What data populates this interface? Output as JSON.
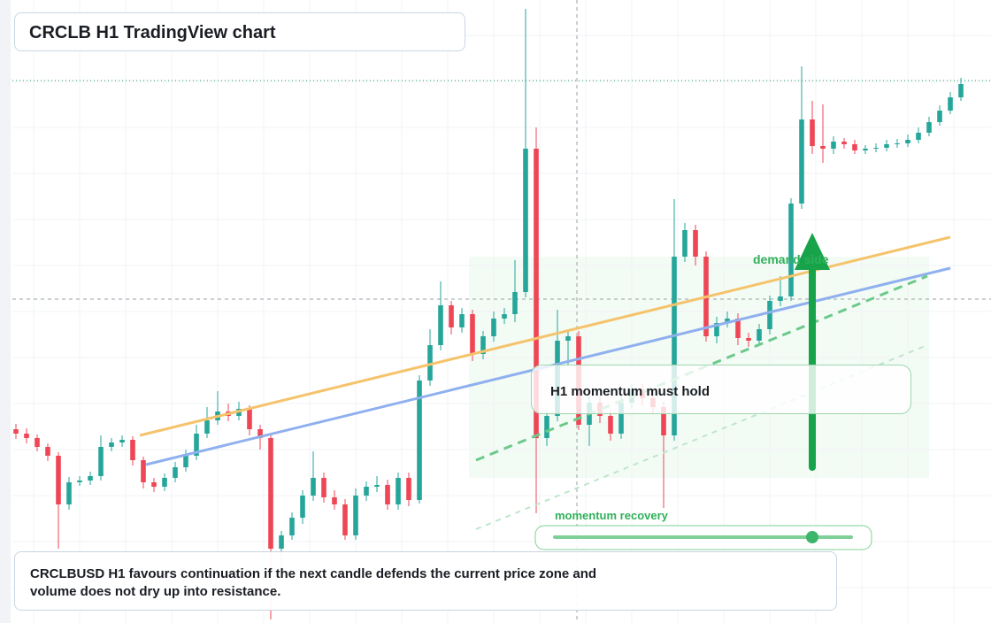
{
  "chart_data": {
    "type": "candlestick",
    "title": "CRCLB H1 TradingView chart",
    "annotations": {
      "zone": "demand side",
      "box": "H1 momentum must hold",
      "slider": "momentum recovery",
      "note": "CRCLBUSD H1 favours continuation if the next candle defends the current price zone and volume does not dry up into resistance."
    },
    "up_color": "#26a69a",
    "down_color": "#ef4655",
    "ylim": [
      0,
      704
    ],
    "series": [
      {
        "name": "open",
        "values": [
          219,
          214,
          209,
          199,
          189,
          134,
          159,
          161,
          166,
          199,
          204,
          207,
          184,
          159,
          154,
          164,
          176,
          189,
          214,
          229,
          239,
          234,
          242,
          219,
          209,
          84,
          99,
          119,
          144,
          164,
          142,
          134,
          99,
          144,
          154,
          156,
          134,
          164,
          139,
          274,
          314,
          359,
          334,
          349,
          304,
          324,
          344,
          349,
          374,
          536,
          209,
          234,
          319,
          324,
          224,
          249,
          234,
          214,
          249,
          264,
          254,
          244,
          212,
          414,
          444,
          414,
          324,
          339,
          344,
          322,
          319,
          332,
          364,
          369,
          474,
          569,
          539,
          536,
          544,
          541,
          534,
          536,
          537,
          541,
          542,
          546,
          554,
          566,
          579,
          594
        ]
      },
      {
        "name": "high",
        "values": [
          225,
          220,
          213,
          203,
          193,
          165,
          166,
          171,
          212,
          209,
          212,
          211,
          188,
          164,
          169,
          182,
          196,
          224,
          244,
          262,
          248,
          250,
          246,
          224,
          213,
          104,
          125,
          150,
          194,
          170,
          150,
          140,
          152,
          160,
          166,
          162,
          170,
          170,
          280,
          332,
          386,
          364,
          356,
          354,
          330,
          352,
          356,
          410,
          694,
          560,
          240,
          354,
          330,
          330,
          256,
          256,
          240,
          256,
          270,
          270,
          260,
          250,
          479,
          452,
          450,
          420,
          346,
          352,
          350,
          328,
          338,
          370,
          392,
          480,
          629,
          590,
          586,
          550,
          548,
          546,
          540,
          542,
          546,
          547,
          552,
          560,
          572,
          585,
          600,
          616
        ]
      },
      {
        "name": "low",
        "values": [
          208,
          203,
          194,
          183,
          84,
          128,
          155,
          156,
          161,
          194,
          199,
          178,
          152,
          148,
          149,
          159,
          171,
          184,
          209,
          224,
          228,
          229,
          212,
          196,
          4,
          60,
          94,
          112,
          138,
          136,
          128,
          94,
          94,
          138,
          148,
          128,
          128,
          132,
          135,
          268,
          308,
          326,
          328,
          296,
          298,
          318,
          338,
          340,
          368,
          124,
          200,
          228,
          292,
          218,
          200,
          226,
          206,
          208,
          242,
          246,
          236,
          130,
          206,
          408,
          404,
          318,
          316,
          334,
          314,
          312,
          313,
          326,
          358,
          364,
          468,
          530,
          520,
          530,
          536,
          530,
          530,
          532,
          533,
          537,
          538,
          542,
          550,
          562,
          575,
          590
        ]
      },
      {
        "name": "close",
        "values": [
          214,
          209,
          199,
          189,
          134,
          159,
          161,
          166,
          199,
          204,
          207,
          184,
          159,
          154,
          164,
          176,
          189,
          214,
          229,
          239,
          234,
          242,
          219,
          209,
          84,
          99,
          119,
          144,
          164,
          142,
          134,
          99,
          144,
          154,
          156,
          134,
          164,
          139,
          274,
          314,
          359,
          334,
          349,
          304,
          324,
          344,
          349,
          374,
          536,
          209,
          234,
          319,
          324,
          224,
          249,
          234,
          214,
          249,
          264,
          254,
          244,
          212,
          414,
          444,
          414,
          324,
          339,
          344,
          322,
          319,
          332,
          364,
          369,
          474,
          569,
          539,
          536,
          544,
          541,
          534,
          536,
          537,
          541,
          542,
          546,
          554,
          566,
          579,
          594,
          609
        ]
      }
    ]
  }
}
